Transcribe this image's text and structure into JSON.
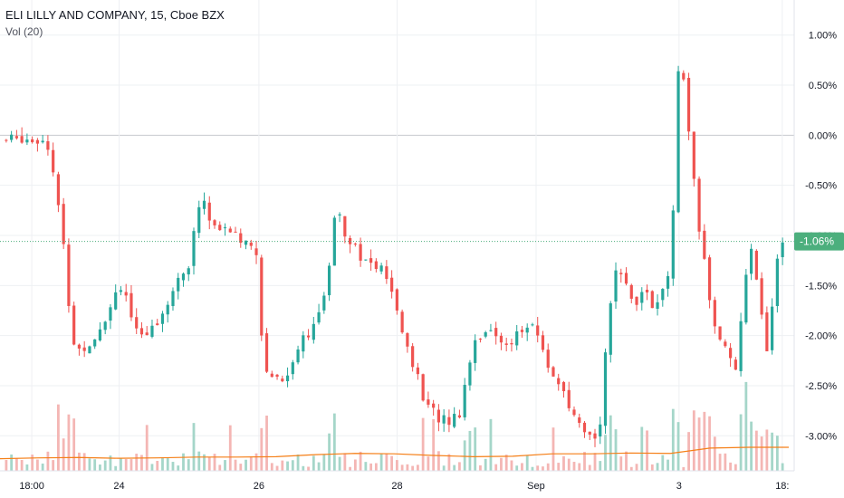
{
  "legend": {
    "symbol_line": "ELI LILLY AND COMPANY, 15, Cboe BZX",
    "indicator": "Vol (20)"
  },
  "last_price_label": "-1.06%",
  "colors": {
    "up": "#26a69a",
    "down": "#ef5350",
    "up_vol": "#a5d6c9",
    "down_vol": "#f4b6b4",
    "vol_ma": "#f57f17",
    "grid": "#eef0f3",
    "zero_line": "#c7c9cf",
    "badge": "#4caf7d",
    "text": "#131722"
  },
  "chart_data": {
    "type": "candlestick",
    "title": "ELI LILLY AND COMPANY, 15, Cboe BZX",
    "y_unit": "%",
    "ylim": [
      -3.35,
      1.35
    ],
    "y_ticks": [
      "1.00%",
      "0.50%",
      "0.00%",
      "-0.50%",
      "-1.00%",
      "-1.50%",
      "-2.00%",
      "-2.50%",
      "-3.00%"
    ],
    "x_ticks": [
      "18:00",
      "24",
      "26",
      "28",
      "Sep",
      "3",
      "18:"
    ],
    "last_value": -1.06,
    "grid": true,
    "path_points": [
      [
        0.0,
        -0.05
      ],
      [
        0.02,
        -0.02
      ],
      [
        0.03,
        -0.04
      ],
      [
        0.045,
        -0.03
      ],
      [
        0.055,
        -0.1
      ],
      [
        0.065,
        -0.6
      ],
      [
        0.075,
        -1.2
      ],
      [
        0.085,
        -2.05
      ],
      [
        0.095,
        -2.15
      ],
      [
        0.11,
        -2.05
      ],
      [
        0.125,
        -1.85
      ],
      [
        0.135,
        -1.7
      ],
      [
        0.145,
        -1.45
      ],
      [
        0.155,
        -1.6
      ],
      [
        0.165,
        -1.95
      ],
      [
        0.175,
        -2.05
      ],
      [
        0.19,
        -1.9
      ],
      [
        0.205,
        -1.7
      ],
      [
        0.215,
        -1.55
      ],
      [
        0.225,
        -1.4
      ],
      [
        0.235,
        -1.3
      ],
      [
        0.245,
        -0.85
      ],
      [
        0.252,
        -0.5
      ],
      [
        0.26,
        -0.85
      ],
      [
        0.275,
        -0.95
      ],
      [
        0.29,
        -0.95
      ],
      [
        0.3,
        -1.05
      ],
      [
        0.315,
        -1.05
      ],
      [
        0.325,
        -1.2
      ],
      [
        0.33,
        -2.3
      ],
      [
        0.345,
        -2.4
      ],
      [
        0.36,
        -2.45
      ],
      [
        0.375,
        -2.1
      ],
      [
        0.39,
        -1.95
      ],
      [
        0.405,
        -1.8
      ],
      [
        0.415,
        -1.4
      ],
      [
        0.425,
        -0.6
      ],
      [
        0.435,
        -0.95
      ],
      [
        0.45,
        -1.1
      ],
      [
        0.46,
        -1.25
      ],
      [
        0.475,
        -1.3
      ],
      [
        0.49,
        -1.4
      ],
      [
        0.5,
        -1.7
      ],
      [
        0.51,
        -1.95
      ],
      [
        0.525,
        -2.3
      ],
      [
        0.54,
        -2.7
      ],
      [
        0.555,
        -2.8
      ],
      [
        0.57,
        -2.85
      ],
      [
        0.585,
        -2.75
      ],
      [
        0.595,
        -2.3
      ],
      [
        0.605,
        -2.0
      ],
      [
        0.62,
        -1.95
      ],
      [
        0.635,
        -2.05
      ],
      [
        0.65,
        -2.05
      ],
      [
        0.665,
        -1.95
      ],
      [
        0.675,
        -1.9
      ],
      [
        0.685,
        -2.0
      ],
      [
        0.695,
        -2.25
      ],
      [
        0.71,
        -2.45
      ],
      [
        0.725,
        -2.75
      ],
      [
        0.74,
        -2.95
      ],
      [
        0.755,
        -3.05
      ],
      [
        0.765,
        -2.85
      ],
      [
        0.775,
        -1.8
      ],
      [
        0.785,
        -1.4
      ],
      [
        0.8,
        -1.5
      ],
      [
        0.81,
        -1.65
      ],
      [
        0.825,
        -1.55
      ],
      [
        0.835,
        -1.75
      ],
      [
        0.845,
        -1.6
      ],
      [
        0.855,
        -1.35
      ],
      [
        0.862,
        -0.3
      ],
      [
        0.867,
        0.95
      ],
      [
        0.875,
        0.3
      ],
      [
        0.882,
        -0.2
      ],
      [
        0.89,
        -0.8
      ],
      [
        0.9,
        -1.3
      ],
      [
        0.91,
        -1.85
      ],
      [
        0.925,
        -2.1
      ],
      [
        0.94,
        -2.3
      ],
      [
        0.95,
        -1.6
      ],
      [
        0.96,
        -1.1
      ],
      [
        0.97,
        -1.55
      ],
      [
        0.98,
        -2.2
      ],
      [
        0.99,
        -1.4
      ],
      [
        1.0,
        -1.06
      ]
    ],
    "volume_ma_points": [
      [
        0.0,
        0.12
      ],
      [
        0.05,
        0.14
      ],
      [
        0.1,
        0.15
      ],
      [
        0.15,
        0.13
      ],
      [
        0.2,
        0.14
      ],
      [
        0.25,
        0.16
      ],
      [
        0.3,
        0.16
      ],
      [
        0.35,
        0.17
      ],
      [
        0.4,
        0.22
      ],
      [
        0.45,
        0.25
      ],
      [
        0.5,
        0.24
      ],
      [
        0.55,
        0.2
      ],
      [
        0.6,
        0.17
      ],
      [
        0.65,
        0.18
      ],
      [
        0.7,
        0.24
      ],
      [
        0.75,
        0.24
      ],
      [
        0.8,
        0.26
      ],
      [
        0.85,
        0.25
      ],
      [
        0.9,
        0.38
      ],
      [
        0.95,
        0.4
      ],
      [
        1.0,
        0.4
      ]
    ]
  }
}
